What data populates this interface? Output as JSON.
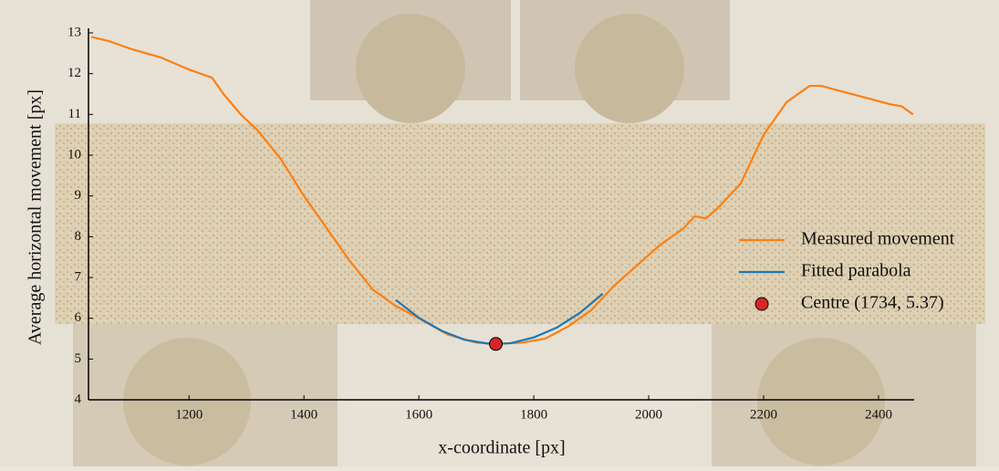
{
  "chart_data": {
    "type": "line",
    "xlabel": "x-coordinate [px]",
    "ylabel": "Average horizontal movement [px]",
    "xlim": [
      1025,
      2462
    ],
    "ylim": [
      4,
      13
    ],
    "xticks": [
      1200,
      1400,
      1600,
      1800,
      2000,
      2200,
      2400
    ],
    "yticks": [
      4,
      5,
      6,
      7,
      8,
      9,
      10,
      11,
      12,
      13
    ],
    "legend": "right",
    "series": [
      {
        "name": "Measured movement",
        "type": "line",
        "color": "#ff7f0e",
        "x": [
          1030,
          1060,
          1100,
          1150,
          1200,
          1240,
          1260,
          1290,
          1320,
          1360,
          1400,
          1440,
          1480,
          1520,
          1560,
          1600,
          1650,
          1700,
          1734,
          1780,
          1820,
          1860,
          1900,
          1940,
          1980,
          2020,
          2060,
          2080,
          2100,
          2120,
          2160,
          2200,
          2240,
          2280,
          2300,
          2340,
          2380,
          2420,
          2440,
          2460
        ],
        "values": [
          12.9,
          12.8,
          12.6,
          12.4,
          12.1,
          11.9,
          11.5,
          11.0,
          10.6,
          9.9,
          9.0,
          8.2,
          7.4,
          6.7,
          6.3,
          6.0,
          5.6,
          5.4,
          5.37,
          5.4,
          5.5,
          5.8,
          6.2,
          6.8,
          7.3,
          7.8,
          8.2,
          8.5,
          8.45,
          8.7,
          9.3,
          10.5,
          11.3,
          11.7,
          11.7,
          11.55,
          11.4,
          11.25,
          11.2,
          11.0
        ]
      },
      {
        "name": "Fitted parabola",
        "type": "line",
        "color": "#1f77b4",
        "x": [
          1560,
          1600,
          1640,
          1680,
          1720,
          1734,
          1760,
          1800,
          1840,
          1880,
          1920
        ],
        "values": [
          6.45,
          6.01,
          5.69,
          5.47,
          5.38,
          5.37,
          5.39,
          5.53,
          5.77,
          6.13,
          6.6
        ]
      },
      {
        "name": "Centre (1734, 5.37)",
        "type": "scatter",
        "color": "#d62728",
        "x": [
          1734
        ],
        "values": [
          5.37
        ]
      }
    ]
  }
}
